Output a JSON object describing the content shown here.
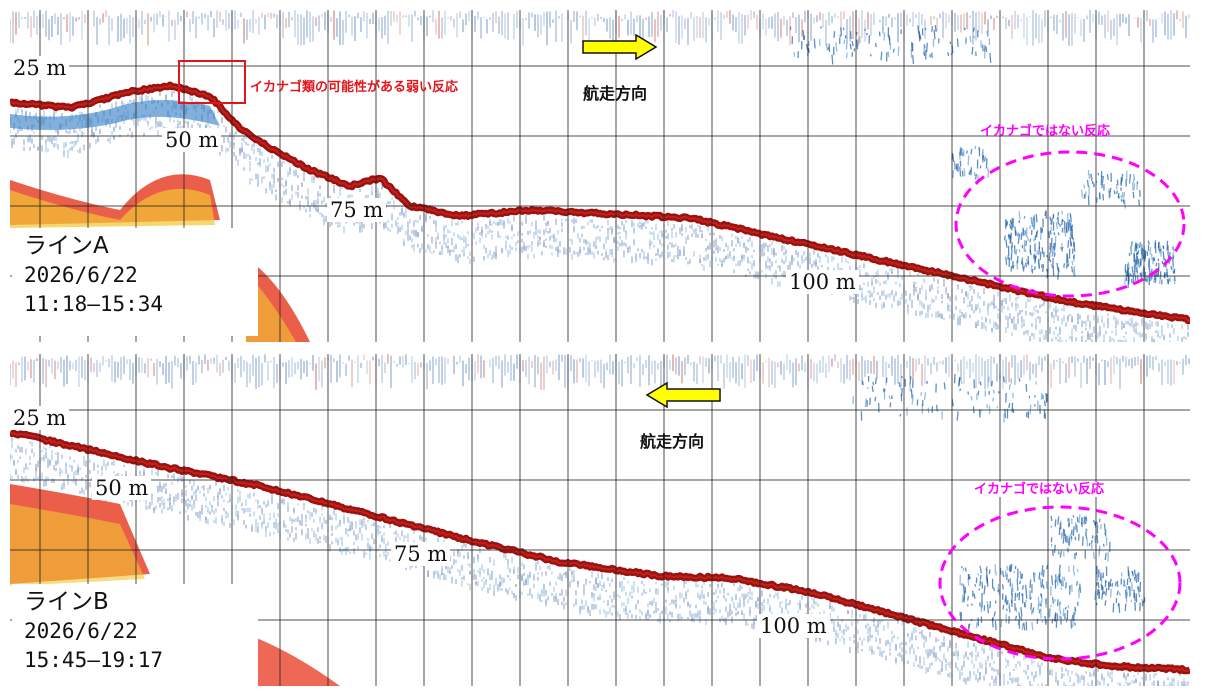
{
  "colors": {
    "bottom_echo": "#9b1111",
    "school_echo": "#1f5fa8",
    "strong_echo": "#e8432a",
    "grid": "#222222",
    "arrow_fill": "#ffff00",
    "highlight_red": "#e4141b",
    "highlight_magenta": "#ff00ff"
  },
  "panel_a": {
    "line_label": "ラインA",
    "date": "2026/6/22",
    "time_range": "11:18—15:34",
    "direction_label": "航走方向",
    "direction": "right",
    "depth_labels": [
      "25 m",
      "50 m",
      "75 m",
      "100 m"
    ],
    "weak_echo_note": "イカナゴ類の可能性がある弱い反応",
    "not_sandeel_note": "イカナゴではない反応"
  },
  "panel_b": {
    "line_label": "ラインB",
    "date": "2026/6/22",
    "time_range": "15:45—19:17",
    "direction_label": "航走方向",
    "direction": "left",
    "depth_labels": [
      "25 m",
      "50 m",
      "75 m",
      "100 m"
    ],
    "not_sandeel_note": "イカナゴではない反応"
  }
}
